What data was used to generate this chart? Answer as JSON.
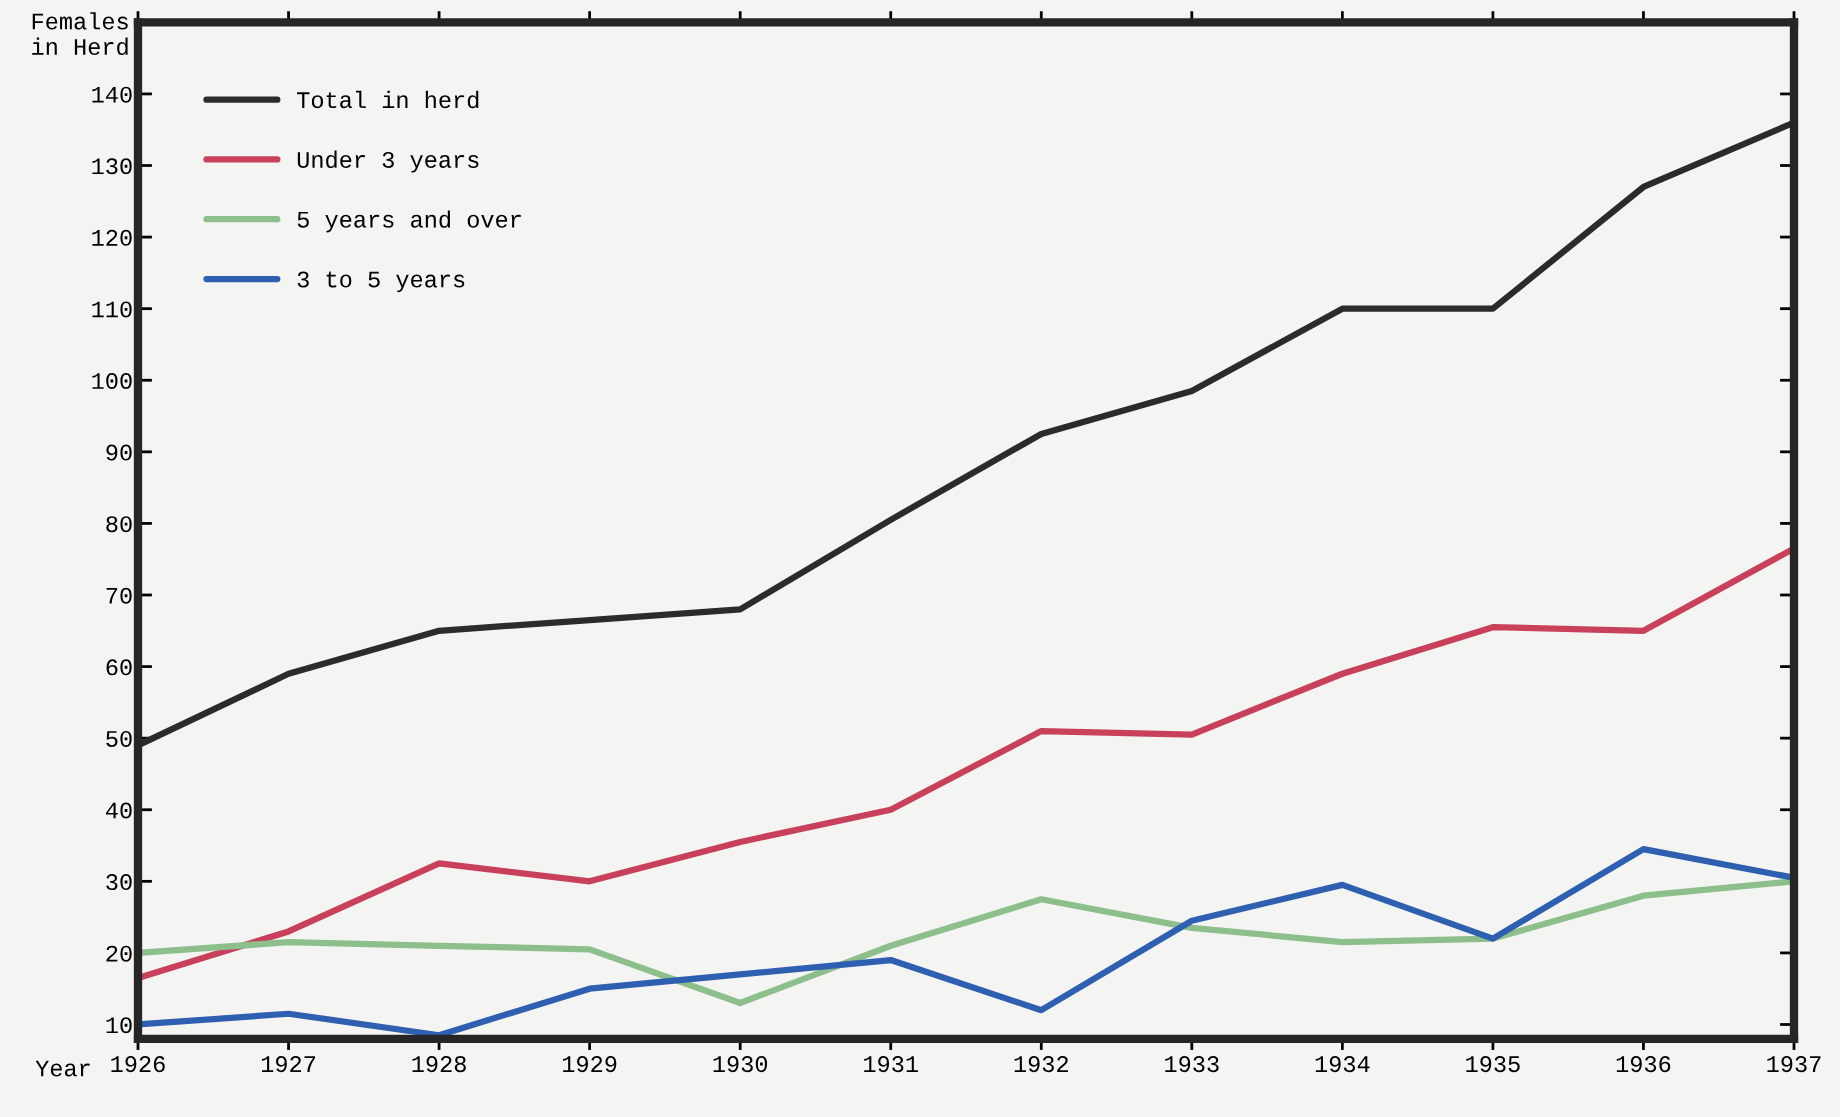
{
  "chart_data": {
    "type": "line",
    "xlabel": "Year",
    "ylabel": "Females\nin Herd",
    "x": [
      1926,
      1927,
      1928,
      1929,
      1930,
      1931,
      1932,
      1933,
      1934,
      1935,
      1936,
      1937
    ],
    "series": [
      {
        "name": "Total in herd",
        "color": "#2b2b2b",
        "values": [
          49,
          59,
          65,
          66.5,
          68,
          80.5,
          92.5,
          98.5,
          110,
          110,
          127,
          136
        ]
      },
      {
        "name": "Under 3 years",
        "color": "#c8405a",
        "values": [
          16.5,
          23,
          32.5,
          30,
          35.5,
          40,
          51,
          50.5,
          59,
          65.5,
          65,
          76.5
        ]
      },
      {
        "name": "5 years and over",
        "color": "#8cbf8c",
        "values": [
          20,
          21.5,
          21,
          20.5,
          13,
          21,
          27.5,
          23.5,
          21.5,
          22,
          28,
          30
        ]
      },
      {
        "name": "3 to 5 years",
        "color": "#2f5fb0",
        "values": [
          10,
          11.5,
          8.5,
          15,
          17,
          19,
          12,
          24.5,
          29.5,
          22,
          34.5,
          30.5
        ]
      }
    ],
    "xlim": [
      1926,
      1937
    ],
    "xticks": [
      1926,
      1927,
      1928,
      1929,
      1930,
      1931,
      1932,
      1933,
      1934,
      1935,
      1936,
      1937
    ],
    "ylim": [
      8,
      150
    ],
    "yticks": [
      10,
      20,
      30,
      40,
      50,
      60,
      70,
      80,
      90,
      100,
      110,
      120,
      130,
      140
    ],
    "grid": false,
    "legend": "top left",
    "marker": "none",
    "line_style": "solid"
  }
}
